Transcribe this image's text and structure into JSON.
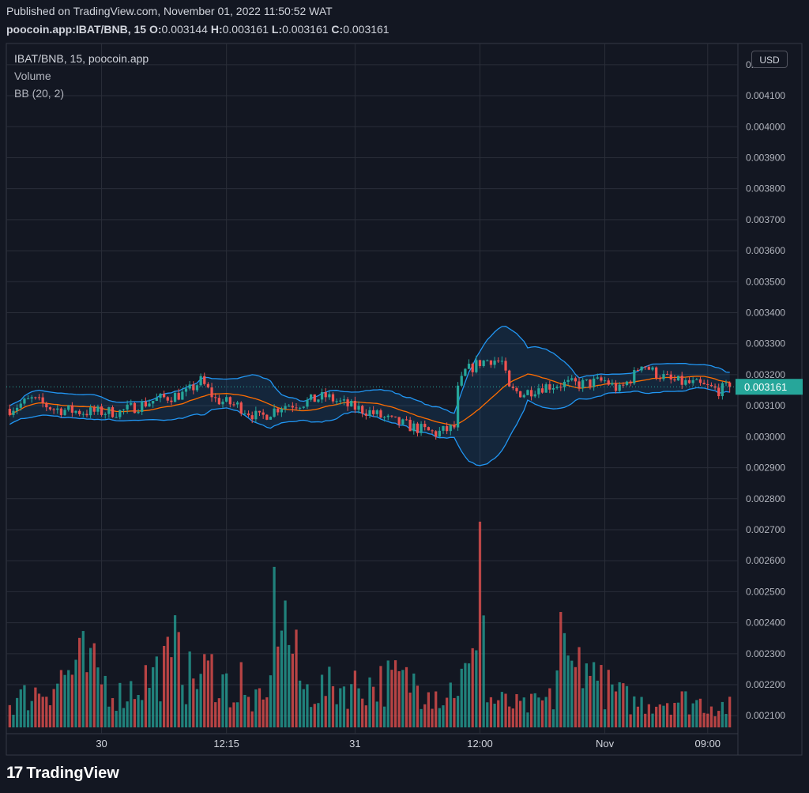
{
  "header": {
    "published": "Published on TradingView.com, November 01, 2022 11:50:52 WAT",
    "symbol": "poocoin.app:IBAT/BNB, 15",
    "o_label": "O:",
    "o_value": "0.003144",
    "h_label": "H:",
    "h_value": "0.003161",
    "l_label": "L:",
    "l_value": "0.003161",
    "c_label": "C:",
    "c_value": "0.003161"
  },
  "legend": {
    "title": "IBAT/BNB, 15, poocoin.app",
    "volume": "Volume",
    "bb": "BB (20, 2)"
  },
  "currency": "USD",
  "brand": {
    "name": "TradingView",
    "logo_icon": "tradingview-logo-icon"
  },
  "colors": {
    "background": "#131722",
    "up": "#26a69a",
    "down": "#ef5350",
    "bb_band": "#2196f3",
    "bb_basis": "#ff6d00",
    "price_badge": "#26a69a",
    "grid": "#2a2e39"
  },
  "chart_data": {
    "type": "candlestick",
    "interval": "15",
    "y_axis": {
      "min": 0.00207,
      "max": 0.00422,
      "ticks": [
        "0.002100",
        "0.002200",
        "0.002300",
        "0.002400",
        "0.002500",
        "0.002600",
        "0.002700",
        "0.002800",
        "0.002900",
        "0.003000",
        "0.003100",
        "0.003200",
        "0.003300",
        "0.003400",
        "0.003500",
        "0.003600",
        "0.003700",
        "0.003800",
        "0.003900",
        "0.004000",
        "0.004100",
        "0.0042"
      ]
    },
    "x_axis": {
      "ticks": [
        {
          "label": "30",
          "bar": 25
        },
        {
          "label": "12:15",
          "bar": 59
        },
        {
          "label": "31",
          "bar": 94
        },
        {
          "label": "12:00",
          "bar": 128
        },
        {
          "label": "Nov",
          "bar": 162
        },
        {
          "label": "09:00",
          "bar": 190
        }
      ]
    },
    "last_price": "0.003161",
    "grid": true,
    "close_anchors": [
      [
        0,
        0.00309
      ],
      [
        6,
        0.00312
      ],
      [
        12,
        0.00309
      ],
      [
        20,
        0.00308
      ],
      [
        30,
        0.00308
      ],
      [
        40,
        0.00312
      ],
      [
        48,
        0.00314
      ],
      [
        52,
        0.00318
      ],
      [
        56,
        0.00312
      ],
      [
        62,
        0.0031
      ],
      [
        68,
        0.00306
      ],
      [
        74,
        0.0031
      ],
      [
        80,
        0.00311
      ],
      [
        86,
        0.00313
      ],
      [
        92,
        0.0031
      ],
      [
        98,
        0.00308
      ],
      [
        104,
        0.00305
      ],
      [
        110,
        0.00303
      ],
      [
        116,
        0.00301
      ],
      [
        121,
        0.00303
      ],
      [
        122,
        0.00315
      ],
      [
        124,
        0.00321
      ],
      [
        128,
        0.00324
      ],
      [
        131,
        0.00325
      ],
      [
        134,
        0.00324
      ],
      [
        136,
        0.00315
      ],
      [
        140,
        0.00314
      ],
      [
        144,
        0.00316
      ],
      [
        150,
        0.00317
      ],
      [
        156,
        0.00317
      ],
      [
        162,
        0.00318
      ],
      [
        166,
        0.00315
      ],
      [
        170,
        0.0032
      ],
      [
        172,
        0.00324
      ],
      [
        175,
        0.00321
      ],
      [
        180,
        0.00318
      ],
      [
        186,
        0.00317
      ],
      [
        193,
        0.00315
      ],
      [
        196,
        0.003161
      ]
    ],
    "volume_anchors": [
      [
        0,
        0.3
      ],
      [
        10,
        0.5
      ],
      [
        20,
        0.8
      ],
      [
        30,
        0.4
      ],
      [
        44,
        0.8
      ],
      [
        46,
        1.05
      ],
      [
        48,
        0.6
      ],
      [
        56,
        0.7
      ],
      [
        62,
        0.35
      ],
      [
        70,
        0.3
      ],
      [
        72,
        1.8
      ],
      [
        80,
        0.45
      ],
      [
        90,
        0.5
      ],
      [
        100,
        0.55
      ],
      [
        108,
        0.6
      ],
      [
        118,
        0.4
      ],
      [
        126,
        0.7
      ],
      [
        128,
        2.3
      ],
      [
        130,
        0.35
      ],
      [
        140,
        0.25
      ],
      [
        148,
        0.35
      ],
      [
        150,
        1.1
      ],
      [
        152,
        0.7
      ],
      [
        158,
        0.6
      ],
      [
        164,
        0.45
      ],
      [
        170,
        0.3
      ],
      [
        180,
        0.35
      ],
      [
        190,
        0.3
      ],
      [
        196,
        0.25
      ]
    ],
    "volume_spikes": [
      [
        21,
        0.55
      ],
      [
        44,
        0.7
      ],
      [
        46,
        0.95
      ],
      [
        63,
        0.65
      ],
      [
        72,
        1.6
      ],
      [
        108,
        0.6
      ],
      [
        114,
        0.35
      ],
      [
        128,
        2.05
      ],
      [
        150,
        1.15
      ],
      [
        155,
        0.8
      ],
      [
        159,
        0.65
      ]
    ],
    "volume_scale_max": 2.6,
    "volume_labels_shown": false
  }
}
